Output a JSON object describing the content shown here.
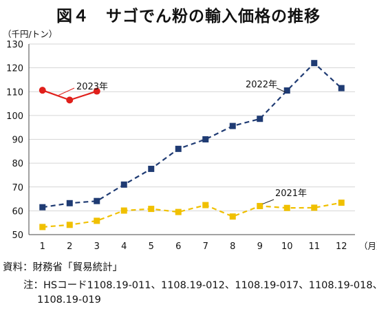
{
  "chart_data": {
    "type": "line",
    "title": "図４　サゴでん粉の輸入価格の推移",
    "ylabel": "（千円/トン）",
    "xunit": "（月）",
    "ylim": [
      50,
      130
    ],
    "yticks": [
      50,
      60,
      70,
      80,
      90,
      100,
      110,
      120,
      130
    ],
    "categories": [
      "1",
      "2",
      "3",
      "4",
      "5",
      "6",
      "7",
      "8",
      "9",
      "10",
      "11",
      "12"
    ],
    "grid": true,
    "series": [
      {
        "name": "2021年",
        "color": "#f0c000",
        "marker": "square",
        "dashed": true,
        "x": [
          1,
          2,
          3,
          4,
          5,
          6,
          7,
          8,
          9,
          10,
          11,
          12
        ],
        "values": [
          53.2,
          54.1,
          55.8,
          60.1,
          60.8,
          59.5,
          62.4,
          57.6,
          62.0,
          61.2,
          61.3,
          63.4
        ]
      },
      {
        "name": "2022年",
        "color": "#1f3b73",
        "marker": "square",
        "dashed": true,
        "x": [
          1,
          2,
          3,
          4,
          5,
          6,
          7,
          8,
          9,
          10,
          11,
          12
        ],
        "values": [
          61.5,
          63.2,
          64.1,
          71.0,
          77.6,
          86.0,
          90.0,
          95.6,
          98.6,
          110.5,
          122.0,
          111.5
        ]
      },
      {
        "name": "2023年",
        "color": "#e0201b",
        "marker": "circle",
        "dashed": false,
        "x": [
          1,
          2,
          3
        ],
        "values": [
          110.6,
          106.5,
          110.2
        ]
      }
    ],
    "source": "資料：財務省「貿易統計」",
    "note_line1": "注：HSコード1108.19-011、1108.19-012、1108.19-017、1108.19-018、",
    "note_line2": "1108.19-019"
  }
}
